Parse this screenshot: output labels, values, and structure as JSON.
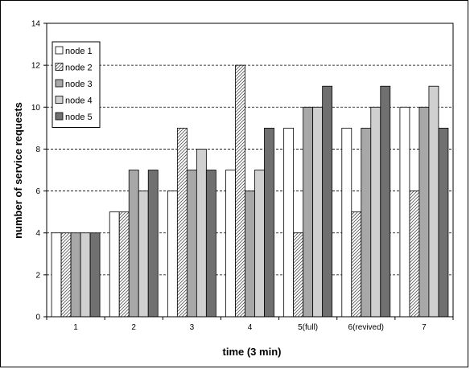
{
  "chart_data": {
    "type": "bar",
    "xlabel": "time (3 min)",
    "ylabel": "number of service requests",
    "ylim": [
      0,
      14
    ],
    "yticks": [
      0,
      2,
      4,
      6,
      8,
      10,
      12,
      14
    ],
    "categories": [
      "1",
      "2",
      "3",
      "4",
      "5(full)",
      "6(revived)",
      "7"
    ],
    "grid": "horizontal dashed",
    "legend_position": "top-left",
    "series": [
      {
        "name": "node 1",
        "values": [
          4,
          5,
          6,
          7,
          9,
          9,
          10
        ],
        "fill": "white"
      },
      {
        "name": "node 2",
        "values": [
          4,
          5,
          9,
          12,
          4,
          5,
          6
        ],
        "fill": "hatched"
      },
      {
        "name": "node 3",
        "values": [
          4,
          7,
          7,
          6,
          10,
          9,
          10
        ],
        "fill": "#a8a8a8"
      },
      {
        "name": "node 4",
        "values": [
          4,
          6,
          8,
          7,
          10,
          10,
          11
        ],
        "fill": "#d0d0d0"
      },
      {
        "name": "node 5",
        "values": [
          4,
          7,
          7,
          9,
          11,
          11,
          9
        ],
        "fill": "#707070"
      }
    ]
  }
}
